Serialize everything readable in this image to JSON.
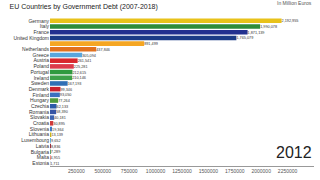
{
  "chart_data": {
    "type": "bar",
    "orientation": "horizontal",
    "title": "EU Countries by Government Debt (2007-2018)",
    "subtitle": "In Million Euros",
    "annotations": [
      "2012"
    ],
    "categories": [
      "Germany",
      "Italy",
      "France",
      "United Kingdom",
      null,
      "Netherlands",
      "Greece",
      "Austria",
      "Poland",
      "Portugal",
      "Ireland",
      "Sweden",
      "Denmark",
      "Finland",
      "Hungary",
      "Czechia",
      "Romania",
      "Slovakia",
      "Croatia",
      "Slovenia",
      "Lithuania",
      "Luxembourg",
      "Latvia",
      "Bulgaria",
      "Malta",
      "Estonia"
    ],
    "values": [
      2192955,
      1990078,
      1871139,
      1765079,
      891499,
      437846,
      305094,
      261541,
      225281,
      212615,
      210146,
      167193,
      99346,
      93050,
      77264,
      62133,
      58390,
      40181,
      30895,
      19364,
      13139,
      9652,
      8836,
      7289,
      4955,
      1711
    ],
    "value_labels": [
      "2,192,955",
      "1,990,078",
      "1,871,139",
      "1,765,079",
      "891,499",
      "437,846",
      "305,094",
      "261,541",
      "225,281",
      "212,615",
      "210,146",
      "167,193",
      "99,346",
      "93,050",
      "77,264",
      "62,133",
      "58,390",
      "40,181",
      "30,895",
      "19,364",
      "13,139",
      "9,652",
      "8,836",
      "7,289",
      "4,955",
      "1,711"
    ],
    "colors": [
      "#e8c21a",
      "#2e8b3a",
      "#23318f",
      "#1c3c86",
      "#f5a623",
      "#e2711d",
      "#5aa6dc",
      "#d8262c",
      "#dc3a4a",
      "#2f9a3f",
      "#3da14a",
      "#2f6fb5",
      "#c8202e",
      "#3a6fc0",
      "#4f9a3c",
      "#2c5aa8",
      "#3554a4",
      "#3b62b0",
      "#d03a3a",
      "#3b78c4",
      "#c9b21c",
      "#63b4e0",
      "#8e2532",
      "#2f8a48",
      "#d23535",
      "#3b73c8"
    ],
    "data_labels": true,
    "xlim": [
      0,
      2500000
    ],
    "xticks": [
      250000,
      500000,
      750000,
      1000000,
      1250000,
      1500000,
      1750000,
      2000000,
      2250000
    ],
    "grid": false
  }
}
